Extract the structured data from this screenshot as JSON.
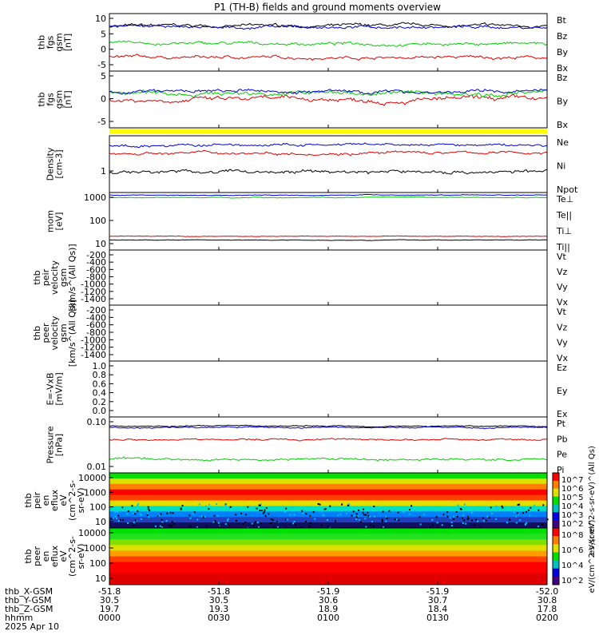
{
  "title": "P1 (TH-B) fields and ground moments overview",
  "colors": {
    "black": "#000000",
    "red": "#e00000",
    "green": "#00d000",
    "blue": "#0000d0",
    "yellow": "#ffff00"
  },
  "chart_data": [
    {
      "type": "line",
      "ylabel": [
        "thb",
        "fgs",
        "gsm",
        "[nT]"
      ],
      "yticks": [
        "10",
        "5",
        "0",
        "-5"
      ],
      "ylim": [
        -9,
        12
      ],
      "series": [
        {
          "name": "Bt",
          "color": "#000000",
          "level": 7.5,
          "amp": 1.5
        },
        {
          "name": "Bz",
          "color": "#e00000",
          "level": -4,
          "amp": 1.5
        },
        {
          "name": "By",
          "color": "#00d000",
          "level": 1,
          "amp": 1.5
        },
        {
          "name": "Bx",
          "color": "#0000d0",
          "level": 7,
          "amp": 1.5
        }
      ]
    },
    {
      "type": "line",
      "ylabel": [
        "thb",
        "fgs",
        "gsm",
        "[nT]"
      ],
      "yticks": [
        "5",
        "0",
        "-5"
      ],
      "ylim": [
        -9,
        9
      ],
      "series": [
        {
          "name": "Bz",
          "color": "#e00000",
          "level": 0,
          "amp": 2
        },
        {
          "name": "By",
          "color": "#00d000",
          "level": 2,
          "amp": 2
        },
        {
          "name": "Bx",
          "color": "#0000d0",
          "level": 2.5,
          "amp": 1.5
        }
      ]
    },
    {
      "type": "line",
      "ylabel": [
        "Density",
        "[cm-3]"
      ],
      "yticks": [
        "1"
      ],
      "ylim": [
        0,
        3
      ],
      "series": [
        {
          "name": "Ne",
          "color": "#e00000",
          "level": 2.1,
          "amp": 0.2
        },
        {
          "name": "Ni",
          "color": "#000000",
          "level": 1.1,
          "amp": 0.25
        },
        {
          "name": "Npot",
          "color": "#0000d0",
          "level": 2.5,
          "amp": 0.2
        }
      ]
    },
    {
      "type": "line",
      "ylabel": [
        "mom",
        "[eV]"
      ],
      "yticks": [
        "1000",
        "100",
        "10"
      ],
      "ylim": [
        0.8,
        3.1
      ],
      "series": [
        {
          "name": "Te⊥",
          "color": "#e00000",
          "level": 1.35,
          "amp": 0.03
        },
        {
          "name": "Te||",
          "color": "#000000",
          "level": 1.2,
          "amp": 0.03
        },
        {
          "name": "Ti⊥",
          "color": "#0000d0",
          "level": 3.0,
          "amp": 0.04
        },
        {
          "name": "Ti||",
          "color": "#00d000",
          "level": 2.9,
          "amp": 0.04
        }
      ]
    },
    {
      "type": "line",
      "ylabel": [
        "thb",
        "peir",
        "velocity",
        "gsm",
        "[km/s^(All Qs)]"
      ],
      "yticks": [
        "-200",
        "-400",
        "-600",
        "-800",
        "-1000",
        "-1200",
        "-1400"
      ],
      "ylim": [
        -1450,
        -100
      ],
      "series": [
        {
          "name": "Vt",
          "color": "#000000"
        },
        {
          "name": "Vz",
          "color": "#e00000"
        },
        {
          "name": "Vy",
          "color": "#00d000"
        },
        {
          "name": "Vx",
          "color": "#0000d0"
        }
      ]
    },
    {
      "type": "line",
      "ylabel": [
        "thb",
        "peer",
        "velocity",
        "gsm",
        "[km/s^(All Qs)]"
      ],
      "yticks": [
        "-200",
        "-400",
        "-600",
        "-800",
        "-1000",
        "-1200",
        "-1400"
      ],
      "ylim": [
        -1450,
        -100
      ],
      "series": [
        {
          "name": "Vt",
          "color": "#000000"
        },
        {
          "name": "Vz",
          "color": "#e00000"
        },
        {
          "name": "Vy",
          "color": "#00d000"
        },
        {
          "name": "Vx",
          "color": "#0000d0"
        }
      ]
    },
    {
      "type": "line",
      "ylabel": [
        "E=-VxB",
        "[mV/m]"
      ],
      "yticks": [
        "1.0",
        "0.8",
        "0.6",
        "0.4",
        "0.2",
        "0.0"
      ],
      "ylim": [
        -0.05,
        1.05
      ],
      "series": [
        {
          "name": "Ez",
          "color": "#e00000"
        },
        {
          "name": "Ey",
          "color": "#00d000"
        },
        {
          "name": "Ex",
          "color": "#0000d0"
        }
      ]
    },
    {
      "type": "line",
      "ylabel": [
        "Pressure",
        "[nPa]"
      ],
      "yticks": [
        "0.10",
        "0.01"
      ],
      "ylim": [
        -2.6,
        -0.75
      ],
      "series": [
        {
          "name": "Pt",
          "color": "#000000",
          "level": -1.05,
          "amp": 0.05
        },
        {
          "name": "Pb",
          "color": "#e00000",
          "level": -1.5,
          "amp": 0.08
        },
        {
          "name": "Pe",
          "color": "#00d000",
          "level": -2.15,
          "amp": 0.1
        },
        {
          "name": "Pi",
          "color": "#0000d0",
          "level": -1.1,
          "amp": 0.06
        }
      ]
    },
    {
      "type": "heatmap",
      "ylabel": [
        "thb",
        "peir",
        "en",
        "eflux",
        "eV",
        "(cm^2-s-",
        "sr-eV)"
      ],
      "yticks": [
        "10000",
        "1000",
        "100",
        "10"
      ],
      "colorbar_label": "eV/(cm^2-s-sr-eV)^(All Qs)",
      "colorbar_ticks": [
        "10^7",
        "10^6",
        "10^5",
        "10^4",
        "10^3",
        "10^2"
      ]
    },
    {
      "type": "heatmap",
      "ylabel": [
        "thb",
        "peer",
        "en",
        "eflux",
        "eV",
        "(cm^2-s-",
        "sr-eV)"
      ],
      "yticks": [
        "10000",
        "1000",
        "100",
        "10"
      ],
      "colorbar_label": "eV/(cm^2-s-sr-eV)",
      "colorbar_ticks": [
        "10^8",
        "10^6",
        "10^4",
        "10^2"
      ]
    }
  ],
  "xaxis": {
    "row_labels": [
      "thb_X-GSM",
      "thb_Y-GSM",
      "thb_Z-GSM",
      "hhmm",
      "2025 Apr 10"
    ],
    "ticks": [
      {
        "x": "-51.8",
        "y": "30.5",
        "z": "19.7",
        "t": "0000"
      },
      {
        "x": "-51.8",
        "y": "30.5",
        "z": "19.3",
        "t": "0030"
      },
      {
        "x": "-51.9",
        "y": "30.6",
        "z": "18.9",
        "t": "0100"
      },
      {
        "x": "-51.9",
        "y": "30.7",
        "z": "18.4",
        "t": "0130"
      },
      {
        "x": "-52.0",
        "y": "30.8",
        "z": "17.8",
        "t": "0200"
      }
    ]
  }
}
